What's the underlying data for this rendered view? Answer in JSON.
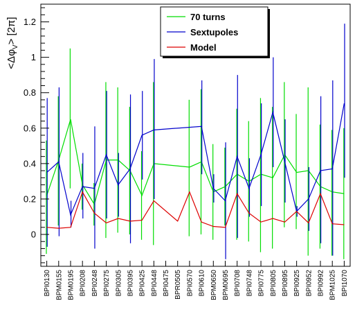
{
  "chart_data": {
    "type": "line",
    "ylabel": "<Δφ_V> [2π]",
    "ylabel_parts": {
      "base": "<Δφ",
      "sub": "V",
      "tail": "> [2π]"
    },
    "ylim": [
      -0.18,
      1.3
    ],
    "yticks": [
      0,
      0.2,
      0.4,
      0.6,
      0.8,
      1,
      1.2
    ],
    "ytick_labels": [
      "0",
      "0.2",
      "0.4",
      "0.6",
      "0.8",
      "1",
      "1.2"
    ],
    "grid": false,
    "legend_position": "top-center",
    "categories": [
      "BPI0130",
      "BPM0155",
      "BPM0195",
      "BPI0208",
      "BPI0248",
      "BPI0275",
      "BPI0305",
      "BPI0395",
      "BPI0425",
      "BPI0448",
      "BPI0475",
      "BPR0505",
      "BPI0570",
      "BPI0610",
      "BPM0650",
      "BPM0695",
      "BPI0708",
      "BPI0748",
      "BPI0775",
      "BPI0805",
      "BPI0895",
      "BPI0925",
      "BPI0952",
      "BPI0992",
      "BPM1025",
      "BPI1070"
    ],
    "series": [
      {
        "name": "70 turns",
        "color": "#00dd00",
        "style": "line+errorbar",
        "points": [
          {
            "i": 0,
            "y": 0.22,
            "lo": -0.11,
            "hi": 0.53
          },
          {
            "i": 1,
            "y": 0.42,
            "lo": 0.05,
            "hi": 0.78
          },
          {
            "i": 2,
            "y": 0.65,
            "lo": 0.26,
            "hi": 1.05
          },
          {
            "i": 3,
            "y": 0.28,
            "lo": 0.14,
            "hi": 0.4
          },
          {
            "i": 4,
            "y": 0.17,
            "lo": 0.05,
            "hi": 0.29
          },
          {
            "i": 5,
            "y": 0.42,
            "lo": -0.02,
            "hi": 0.86
          },
          {
            "i": 6,
            "y": 0.42,
            "lo": 0.01,
            "hi": 0.83
          },
          {
            "i": 7,
            "y": 0.36,
            "lo": 0.0,
            "hi": 0.72
          },
          {
            "i": 8,
            "y": 0.22,
            "lo": -0.03,
            "hi": 0.47
          },
          {
            "i": 9,
            "y": 0.4,
            "lo": -0.06,
            "hi": 0.86
          },
          {
            "i": 12,
            "y": 0.38,
            "lo": -0.01,
            "hi": 0.76
          },
          {
            "i": 13,
            "y": 0.41,
            "lo": 0.0,
            "hi": 0.82
          },
          {
            "i": 14,
            "y": 0.24,
            "lo": -0.03,
            "hi": 0.51
          },
          {
            "i": 15,
            "y": 0.27,
            "lo": 0.05,
            "hi": 0.49
          },
          {
            "i": 16,
            "y": 0.34,
            "lo": -0.03,
            "hi": 0.71
          },
          {
            "i": 17,
            "y": 0.3,
            "lo": -0.04,
            "hi": 0.64
          },
          {
            "i": 18,
            "y": 0.34,
            "lo": -0.1,
            "hi": 0.77
          },
          {
            "i": 19,
            "y": 0.32,
            "lo": -0.08,
            "hi": 0.72
          },
          {
            "i": 20,
            "y": 0.45,
            "lo": 0.04,
            "hi": 0.86
          },
          {
            "i": 21,
            "y": 0.35,
            "lo": 0.03,
            "hi": 0.68
          },
          {
            "i": 22,
            "y": 0.36,
            "lo": -0.12,
            "hi": 0.83
          },
          {
            "i": 23,
            "y": 0.27,
            "lo": -0.08,
            "hi": 0.62
          },
          {
            "i": 24,
            "y": 0.24,
            "lo": -0.12,
            "hi": 0.59
          },
          {
            "i": 25,
            "y": 0.23,
            "lo": -0.14,
            "hi": 0.6
          }
        ]
      },
      {
        "name": "Sextupoles",
        "color": "#0000cc",
        "style": "line+errorbar",
        "points": [
          {
            "i": 0,
            "y": 0.35,
            "lo": -0.07,
            "hi": 0.77
          },
          {
            "i": 1,
            "y": 0.41,
            "lo": -0.01,
            "hi": 0.83
          },
          {
            "i": 2,
            "y": 0.11,
            "lo": 0.04,
            "hi": 0.19
          },
          {
            "i": 3,
            "y": 0.27,
            "lo": 0.09,
            "hi": 0.46
          },
          {
            "i": 4,
            "y": 0.26,
            "lo": -0.08,
            "hi": 0.61
          },
          {
            "i": 5,
            "y": 0.45,
            "lo": 0.09,
            "hi": 0.81
          },
          {
            "i": 6,
            "y": 0.28,
            "lo": 0.1,
            "hi": 0.46
          },
          {
            "i": 7,
            "y": 0.37,
            "lo": -0.05,
            "hi": 0.79
          },
          {
            "i": 8,
            "y": 0.56,
            "lo": 0.31,
            "hi": 0.81
          },
          {
            "i": 9,
            "y": 0.59,
            "lo": 0.2,
            "hi": 0.99
          },
          {
            "i": 13,
            "y": 0.61,
            "lo": 0.34,
            "hi": 0.87
          },
          {
            "i": 14,
            "y": 0.26,
            "lo": 0.18,
            "hi": 0.34
          },
          {
            "i": 15,
            "y": 0.19,
            "lo": -0.14,
            "hi": 0.52
          },
          {
            "i": 16,
            "y": 0.44,
            "lo": -0.02,
            "hi": 0.9
          },
          {
            "i": 17,
            "y": 0.26,
            "lo": 0.1,
            "hi": 0.43
          },
          {
            "i": 18,
            "y": 0.45,
            "lo": 0.16,
            "hi": 0.74
          },
          {
            "i": 19,
            "y": 0.69,
            "lo": 0.38,
            "hi": 1.0
          },
          {
            "i": 20,
            "y": 0.41,
            "lo": 0.18,
            "hi": 0.65
          },
          {
            "i": 21,
            "y": 0.13,
            "lo": 0.1,
            "hi": 0.16
          },
          {
            "i": 22,
            "y": 0.2,
            "lo": 0.02,
            "hi": 0.38
          },
          {
            "i": 23,
            "y": 0.36,
            "lo": -0.05,
            "hi": 0.78
          },
          {
            "i": 24,
            "y": 0.37,
            "lo": -0.12,
            "hi": 0.87
          },
          {
            "i": 25,
            "y": 0.74,
            "lo": 0.32,
            "hi": 1.19
          }
        ]
      },
      {
        "name": "Model",
        "color": "#dd0000",
        "style": "line",
        "points": [
          {
            "i": 0,
            "y": 0.04
          },
          {
            "i": 1,
            "y": 0.035
          },
          {
            "i": 2,
            "y": 0.04
          },
          {
            "i": 3,
            "y": 0.24
          },
          {
            "i": 4,
            "y": 0.12
          },
          {
            "i": 5,
            "y": 0.065
          },
          {
            "i": 6,
            "y": 0.09
          },
          {
            "i": 7,
            "y": 0.075
          },
          {
            "i": 8,
            "y": 0.08
          },
          {
            "i": 9,
            "y": 0.19
          },
          {
            "i": 11,
            "y": 0.075
          },
          {
            "i": 12,
            "y": 0.24
          },
          {
            "i": 13,
            "y": 0.07
          },
          {
            "i": 14,
            "y": 0.045
          },
          {
            "i": 15,
            "y": 0.04
          },
          {
            "i": 16,
            "y": 0.23
          },
          {
            "i": 17,
            "y": 0.12
          },
          {
            "i": 18,
            "y": 0.07
          },
          {
            "i": 19,
            "y": 0.09
          },
          {
            "i": 20,
            "y": 0.07
          },
          {
            "i": 21,
            "y": 0.13
          },
          {
            "i": 22,
            "y": 0.065
          },
          {
            "i": 23,
            "y": 0.23
          },
          {
            "i": 24,
            "y": 0.06
          },
          {
            "i": 25,
            "y": 0.055
          }
        ]
      }
    ]
  }
}
